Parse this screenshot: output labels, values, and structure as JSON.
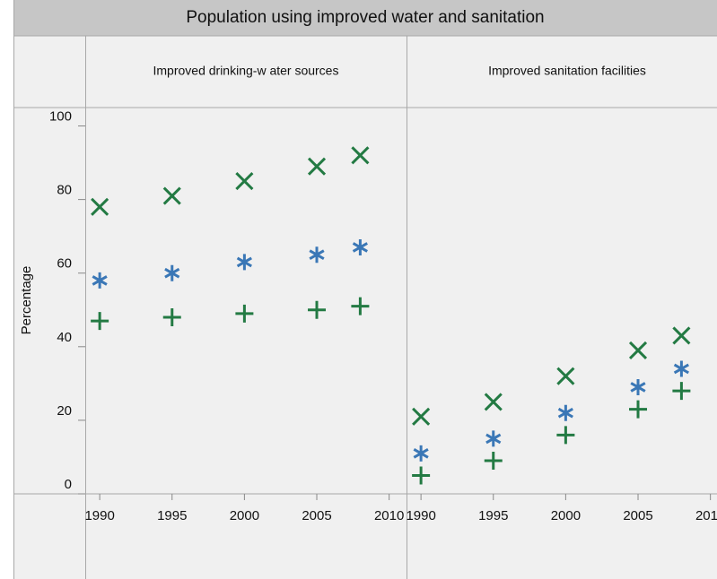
{
  "chart_data": {
    "type": "scatter",
    "title": "Population using improved water and sanitation",
    "ylabel": "Percentage",
    "ylim": [
      0,
      105
    ],
    "yticks": [
      0,
      20,
      40,
      60,
      80,
      100
    ],
    "xlim": [
      1989,
      2011.2
    ],
    "xticks": [
      1990,
      1995,
      2000,
      2005,
      2010
    ],
    "panels": [
      {
        "title": "Improved drinking-w ater sources",
        "x": [
          1990,
          1995,
          2000,
          2005,
          2008
        ],
        "series": [
          {
            "marker": "x",
            "color": "#237a43",
            "values": [
              78,
              81,
              85,
              89,
              92
            ]
          },
          {
            "marker": "asterisk",
            "color": "#3a77b6",
            "values": [
              58,
              60,
              63,
              65,
              67
            ]
          },
          {
            "marker": "plus",
            "color": "#237a43",
            "values": [
              47,
              48,
              49,
              50,
              51
            ]
          }
        ]
      },
      {
        "title": "Improved sanitation facilities",
        "x": [
          1990,
          1995,
          2000,
          2005,
          2008
        ],
        "series": [
          {
            "marker": "x",
            "color": "#237a43",
            "values": [
              21,
              25,
              32,
              39,
              43
            ]
          },
          {
            "marker": "asterisk",
            "color": "#3a77b6",
            "values": [
              11,
              15,
              22,
              29,
              34
            ]
          },
          {
            "marker": "plus",
            "color": "#237a43",
            "values": [
              5,
              9,
              16,
              23,
              28
            ]
          }
        ]
      }
    ]
  }
}
